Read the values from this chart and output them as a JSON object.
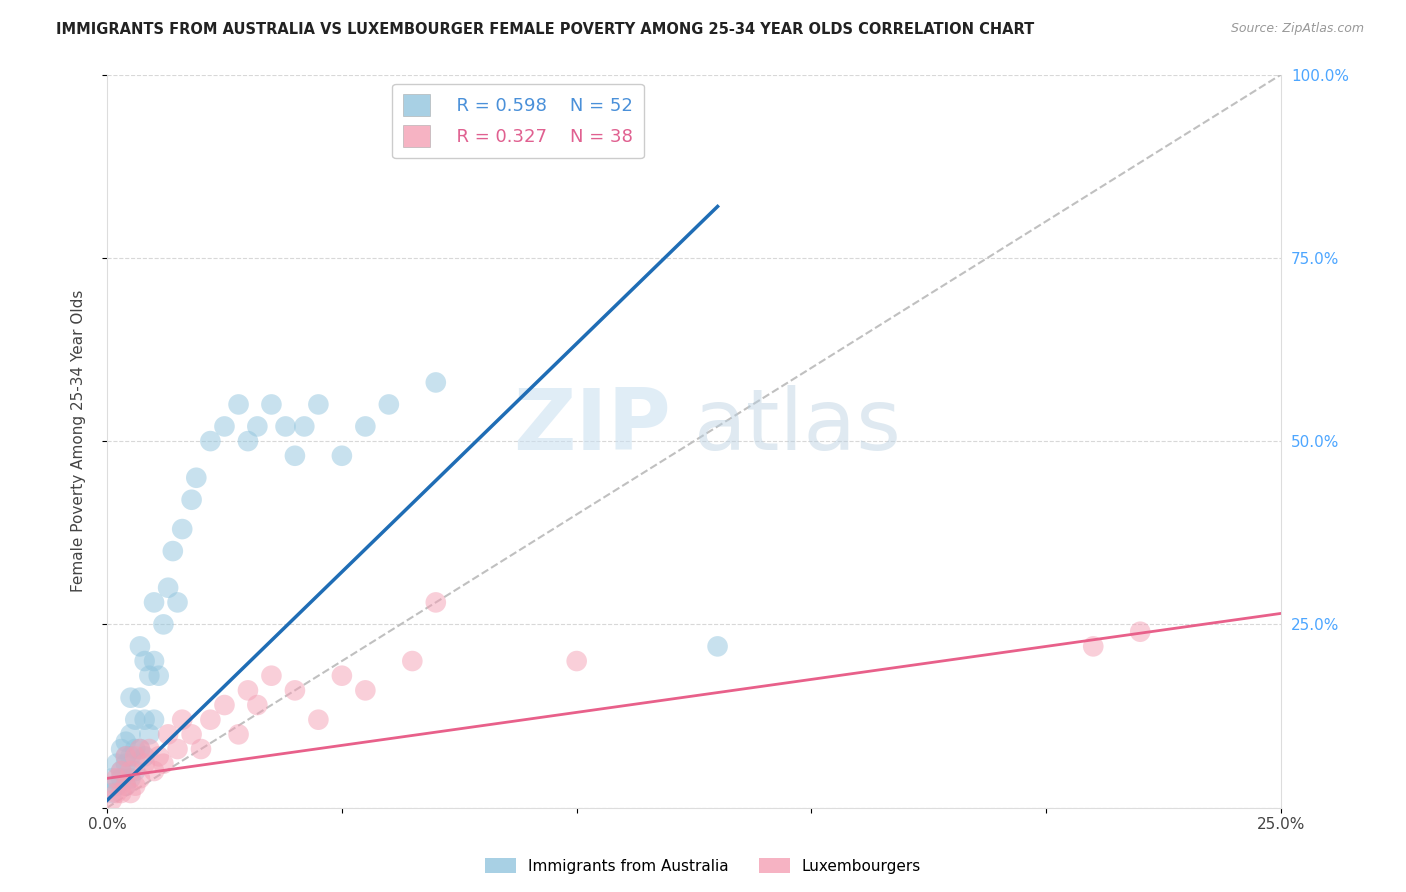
{
  "title": "IMMIGRANTS FROM AUSTRALIA VS LUXEMBOURGER FEMALE POVERTY AMONG 25-34 YEAR OLDS CORRELATION CHART",
  "source": "Source: ZipAtlas.com",
  "ylabel": "Female Poverty Among 25-34 Year Olds",
  "xlim": [
    0,
    0.25
  ],
  "ylim": [
    0,
    1.0
  ],
  "xticks": [
    0.0,
    0.05,
    0.1,
    0.15,
    0.2,
    0.25
  ],
  "xticklabels": [
    "0.0%",
    "",
    "",
    "",
    "",
    "25.0%"
  ],
  "yticks_right": [
    0.0,
    0.25,
    0.5,
    0.75,
    1.0
  ],
  "yticklabels_right": [
    "",
    "25.0%",
    "50.0%",
    "75.0%",
    "100.0%"
  ],
  "legend_r1": "R = 0.598",
  "legend_n1": "N = 52",
  "legend_r2": "R = 0.327",
  "legend_n2": "N = 38",
  "color_blue": "#92c5de",
  "color_pink": "#f4a0b5",
  "color_line_blue": "#1f6db5",
  "color_line_pink": "#e8608a",
  "color_diag": "#c0c0c0",
  "watermark_zip": "ZIP",
  "watermark_atlas": "atlas",
  "series1_x": [
    0.001,
    0.001,
    0.002,
    0.002,
    0.003,
    0.003,
    0.003,
    0.004,
    0.004,
    0.004,
    0.004,
    0.005,
    0.005,
    0.005,
    0.005,
    0.006,
    0.006,
    0.006,
    0.007,
    0.007,
    0.007,
    0.008,
    0.008,
    0.008,
    0.009,
    0.009,
    0.01,
    0.01,
    0.01,
    0.011,
    0.012,
    0.013,
    0.014,
    0.015,
    0.016,
    0.018,
    0.019,
    0.022,
    0.025,
    0.028,
    0.03,
    0.032,
    0.035,
    0.038,
    0.04,
    0.042,
    0.045,
    0.05,
    0.055,
    0.06,
    0.07,
    0.13
  ],
  "series1_y": [
    0.02,
    0.04,
    0.03,
    0.06,
    0.04,
    0.05,
    0.08,
    0.03,
    0.06,
    0.07,
    0.09,
    0.04,
    0.07,
    0.1,
    0.15,
    0.05,
    0.08,
    0.12,
    0.08,
    0.15,
    0.22,
    0.07,
    0.12,
    0.2,
    0.1,
    0.18,
    0.12,
    0.2,
    0.28,
    0.18,
    0.25,
    0.3,
    0.35,
    0.28,
    0.38,
    0.42,
    0.45,
    0.5,
    0.52,
    0.55,
    0.5,
    0.52,
    0.55,
    0.52,
    0.48,
    0.52,
    0.55,
    0.48,
    0.52,
    0.55,
    0.58,
    0.22
  ],
  "series2_x": [
    0.001,
    0.002,
    0.002,
    0.003,
    0.003,
    0.004,
    0.004,
    0.005,
    0.005,
    0.006,
    0.006,
    0.007,
    0.007,
    0.008,
    0.009,
    0.01,
    0.011,
    0.012,
    0.013,
    0.015,
    0.016,
    0.018,
    0.02,
    0.022,
    0.025,
    0.028,
    0.03,
    0.032,
    0.035,
    0.04,
    0.045,
    0.05,
    0.055,
    0.065,
    0.07,
    0.1,
    0.21,
    0.22
  ],
  "series2_y": [
    0.01,
    0.02,
    0.04,
    0.02,
    0.05,
    0.03,
    0.07,
    0.02,
    0.05,
    0.03,
    0.07,
    0.04,
    0.08,
    0.06,
    0.08,
    0.05,
    0.07,
    0.06,
    0.1,
    0.08,
    0.12,
    0.1,
    0.08,
    0.12,
    0.14,
    0.1,
    0.16,
    0.14,
    0.18,
    0.16,
    0.12,
    0.18,
    0.16,
    0.2,
    0.28,
    0.2,
    0.22,
    0.24
  ],
  "trendline1_x0": 0.0,
  "trendline1_y0": 0.01,
  "trendline1_x1": 0.13,
  "trendline1_y1": 0.82,
  "trendline2_x0": 0.0,
  "trendline2_y0": 0.04,
  "trendline2_x1": 0.25,
  "trendline2_y1": 0.265
}
